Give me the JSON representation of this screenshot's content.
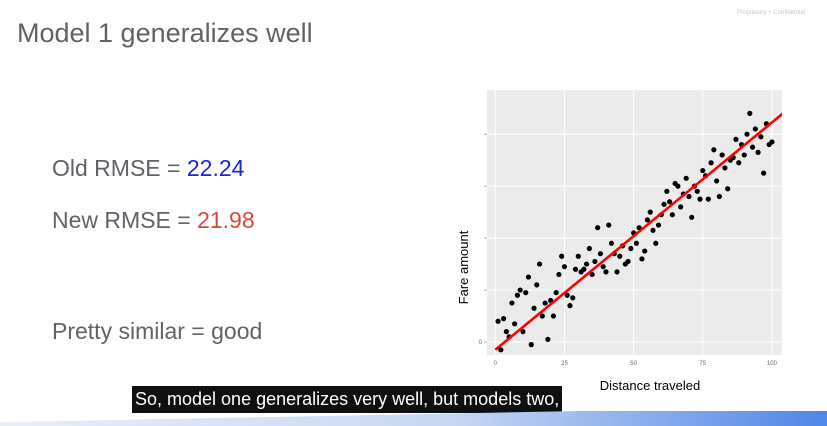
{
  "slide": {
    "watermark": "Proprietary + Confidential",
    "title": "Model 1 generalizes well",
    "old_rmse": {
      "label": "Old RMSE = ",
      "value": "22.24",
      "color": "#1a25d8"
    },
    "new_rmse": {
      "label": "New RMSE = ",
      "value": "21.98",
      "color": "#d9473b"
    },
    "verdict": "Pretty similar = good"
  },
  "caption": "So, model one generalizes very well, but models two,",
  "chart_data": {
    "type": "scatter",
    "xlabel": "Distance traveled",
    "ylabel": "Fare amount",
    "xlim": [
      -3,
      104
    ],
    "ylim": [
      -5,
      97
    ],
    "x_ticks": [
      0,
      25,
      50,
      75,
      100
    ],
    "y_ticks": [
      0,
      20,
      40,
      60,
      80
    ],
    "y_tick_labels_visible": [
      "0",
      "",
      "",
      "",
      ""
    ],
    "grid": true,
    "background_color": "#ebebeb",
    "point_color": "#000000",
    "fit_line": {
      "color": "#ff0000",
      "x": [
        0,
        104
      ],
      "y": [
        -3,
        88
      ]
    },
    "points": [
      [
        1,
        8
      ],
      [
        2,
        -3
      ],
      [
        3,
        9
      ],
      [
        4,
        4
      ],
      [
        5,
        2
      ],
      [
        6,
        15
      ],
      [
        7,
        7
      ],
      [
        8,
        18
      ],
      [
        9,
        20
      ],
      [
        10,
        4
      ],
      [
        11,
        19
      ],
      [
        12,
        25
      ],
      [
        13,
        -1
      ],
      [
        14,
        13
      ],
      [
        15,
        22
      ],
      [
        16,
        30
      ],
      [
        17,
        10
      ],
      [
        18,
        15
      ],
      [
        19,
        1
      ],
      [
        20,
        16
      ],
      [
        21,
        10
      ],
      [
        22,
        19
      ],
      [
        23,
        26
      ],
      [
        24,
        33
      ],
      [
        25,
        29
      ],
      [
        26,
        18
      ],
      [
        27,
        14
      ],
      [
        28,
        17
      ],
      [
        29,
        28
      ],
      [
        30,
        33
      ],
      [
        31,
        27
      ],
      [
        32,
        28
      ],
      [
        33,
        30
      ],
      [
        34,
        36
      ],
      [
        35,
        26
      ],
      [
        36,
        31
      ],
      [
        37,
        44
      ],
      [
        38,
        34
      ],
      [
        39,
        29
      ],
      [
        40,
        27
      ],
      [
        41,
        45
      ],
      [
        42,
        38
      ],
      [
        43,
        34
      ],
      [
        44,
        27
      ],
      [
        45,
        33
      ],
      [
        46,
        37
      ],
      [
        47,
        30
      ],
      [
        48,
        31
      ],
      [
        49,
        36
      ],
      [
        50,
        42
      ],
      [
        51,
        38
      ],
      [
        52,
        44
      ],
      [
        53,
        32
      ],
      [
        54,
        35
      ],
      [
        55,
        47
      ],
      [
        56,
        50
      ],
      [
        57,
        43
      ],
      [
        58,
        38
      ],
      [
        59,
        45
      ],
      [
        60,
        49
      ],
      [
        61,
        53
      ],
      [
        62,
        58
      ],
      [
        63,
        54
      ],
      [
        64,
        49
      ],
      [
        65,
        61
      ],
      [
        66,
        60
      ],
      [
        67,
        52
      ],
      [
        68,
        57
      ],
      [
        69,
        63
      ],
      [
        70,
        56
      ],
      [
        71,
        48
      ],
      [
        72,
        60
      ],
      [
        73,
        58
      ],
      [
        74,
        55
      ],
      [
        75,
        66
      ],
      [
        76,
        64
      ],
      [
        77,
        55
      ],
      [
        78,
        69
      ],
      [
        79,
        74
      ],
      [
        80,
        62
      ],
      [
        81,
        56
      ],
      [
        82,
        72
      ],
      [
        83,
        67
      ],
      [
        84,
        59
      ],
      [
        85,
        70
      ],
      [
        86,
        71
      ],
      [
        87,
        78
      ],
      [
        88,
        69
      ],
      [
        89,
        76
      ],
      [
        90,
        72
      ],
      [
        91,
        80
      ],
      [
        92,
        88
      ],
      [
        93,
        75
      ],
      [
        94,
        82
      ],
      [
        95,
        73
      ],
      [
        96,
        79
      ],
      [
        97,
        65
      ],
      [
        98,
        84
      ],
      [
        99,
        76
      ],
      [
        100,
        77
      ]
    ]
  }
}
